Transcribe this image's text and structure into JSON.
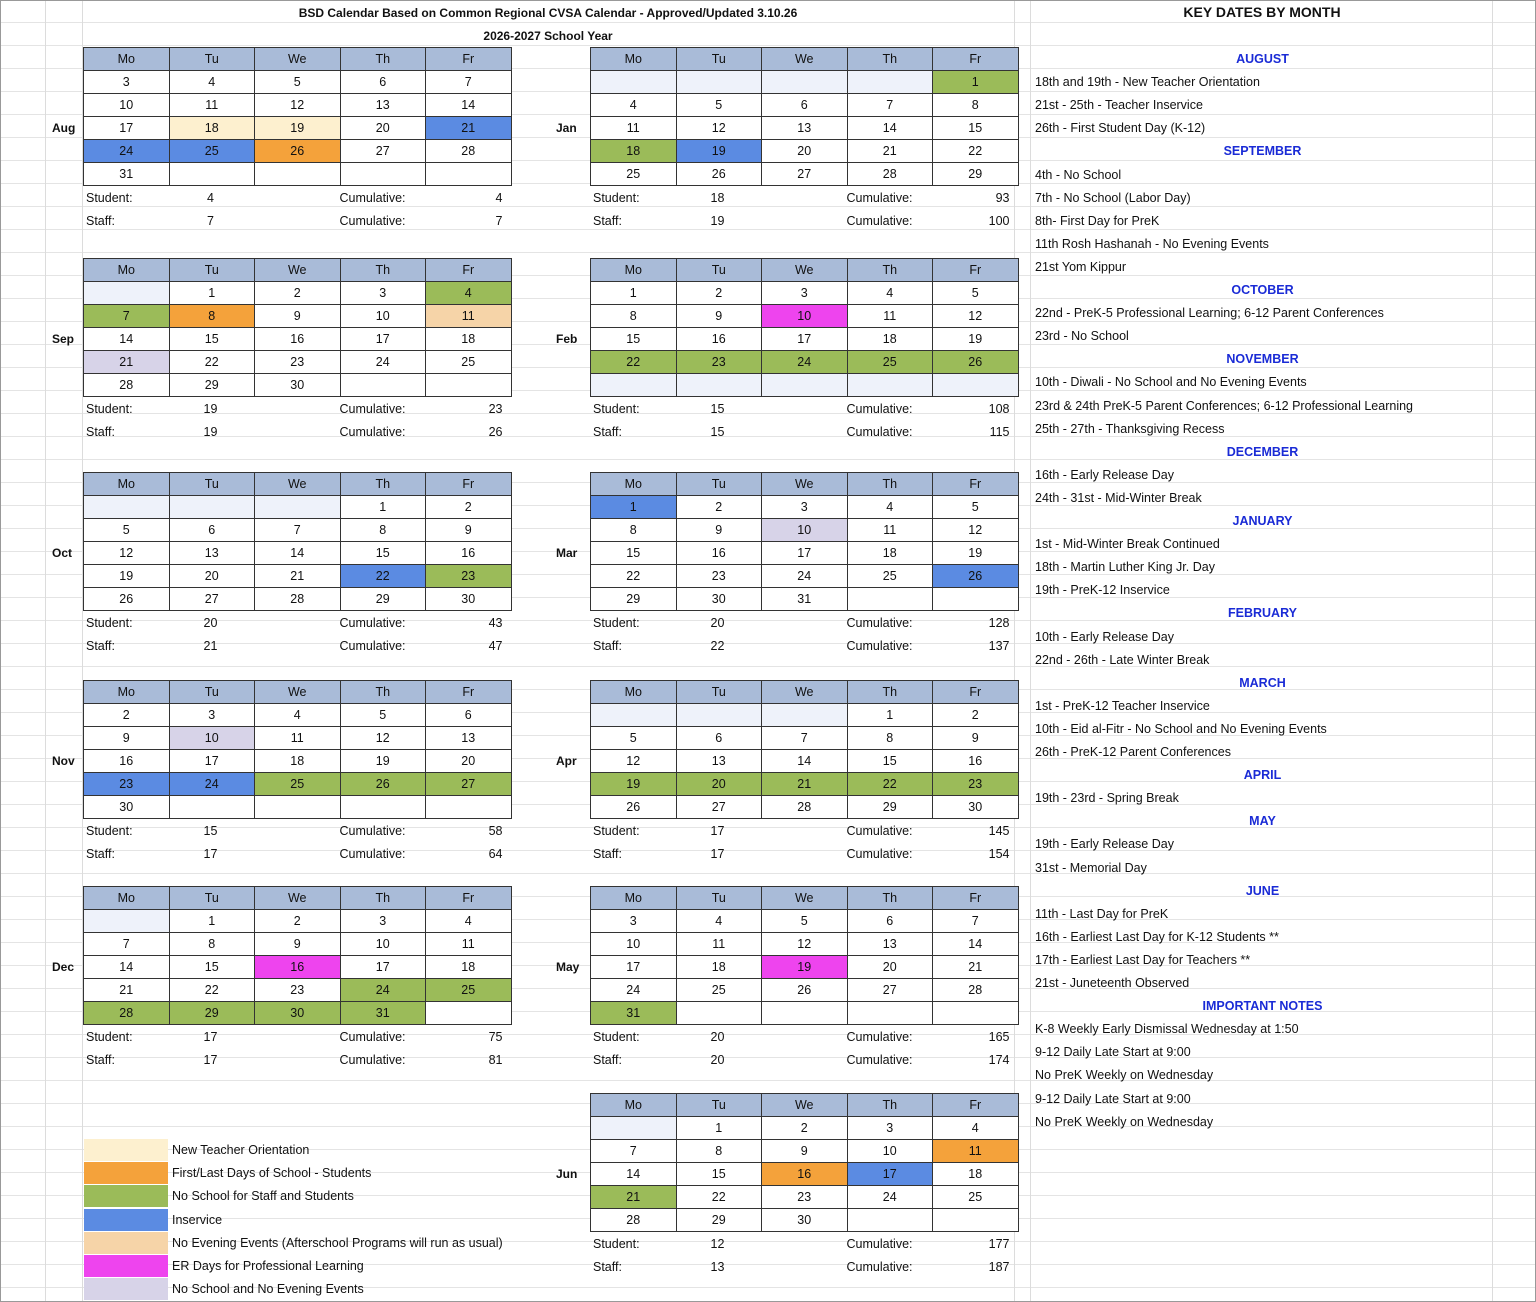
{
  "header": {
    "title": "BSD Calendar Based on Common Regional CVSA Calendar - Approved/Updated 3.10.26",
    "subtitle": "2026-2027 School Year",
    "key_dates_title": "KEY DATES BY MONTH"
  },
  "labels": {
    "student": "Student:",
    "staff": "Staff:",
    "cumulative": "Cumulative:"
  },
  "weekdays": [
    "Mo",
    "Tu",
    "We",
    "Th",
    "Fr"
  ],
  "colors": {
    "orient": "#fdf0cf",
    "first": "#f4a23b",
    "noschool": "#9bbb59",
    "inservice": "#5b8be2",
    "noeve": "#f6d4a8",
    "er": "#ee44ee",
    "nsne": "#d7d3e8",
    "blank": "#eef2fa"
  },
  "months": [
    {
      "name": "Aug",
      "weeks": [
        [
          "3",
          "4",
          "5",
          "6",
          "7"
        ],
        [
          "10",
          "11",
          "12",
          "13",
          "14"
        ],
        [
          "17",
          "18:orient",
          "19:orient",
          "20",
          "21:inservice"
        ],
        [
          "24:inservice",
          "25:inservice",
          "26:first",
          "27",
          "28"
        ],
        [
          "31",
          "",
          "",
          "",
          ""
        ]
      ],
      "student": "4",
      "student_cum": "4",
      "staff": "7",
      "staff_cum": "7"
    },
    {
      "name": "Jan",
      "weeks": [
        [
          ":blank",
          ":blank",
          ":blank",
          ":blank",
          "1:noschool"
        ],
        [
          "4",
          "5",
          "6",
          "7",
          "8"
        ],
        [
          "11",
          "12",
          "13",
          "14",
          "15"
        ],
        [
          "18:noschool",
          "19:inservice",
          "20",
          "21",
          "22"
        ],
        [
          "25",
          "26",
          "27",
          "28",
          "29"
        ]
      ],
      "student": "18",
      "student_cum": "93",
      "staff": "19",
      "staff_cum": "100"
    },
    {
      "name": "Sep",
      "weeks": [
        [
          ":blank",
          "1",
          "2",
          "3",
          "4:noschool"
        ],
        [
          "7:noschool",
          "8:first",
          "9",
          "10",
          "11:noeve"
        ],
        [
          "14",
          "15",
          "16",
          "17",
          "18"
        ],
        [
          "21:nsne",
          "22",
          "23",
          "24",
          "25"
        ],
        [
          "28",
          "29",
          "30",
          "",
          ""
        ]
      ],
      "student": "19",
      "student_cum": "23",
      "staff": "19",
      "staff_cum": "26"
    },
    {
      "name": "Feb",
      "weeks": [
        [
          "1",
          "2",
          "3",
          "4",
          "5"
        ],
        [
          "8",
          "9",
          "10:er",
          "11",
          "12"
        ],
        [
          "15",
          "16",
          "17",
          "18",
          "19"
        ],
        [
          "22:noschool",
          "23:noschool",
          "24:noschool",
          "25:noschool",
          "26:noschool"
        ],
        [
          ":blank",
          ":blank",
          ":blank",
          ":blank",
          ":blank"
        ]
      ],
      "student": "15",
      "student_cum": "108",
      "staff": "15",
      "staff_cum": "115"
    },
    {
      "name": "Oct",
      "weeks": [
        [
          ":blank",
          ":blank",
          ":blank",
          "1",
          "2"
        ],
        [
          "5",
          "6",
          "7",
          "8",
          "9"
        ],
        [
          "12",
          "13",
          "14",
          "15",
          "16"
        ],
        [
          "19",
          "20",
          "21",
          "22:inservice",
          "23:noschool"
        ],
        [
          "26",
          "27",
          "28",
          "29",
          "30"
        ]
      ],
      "student": "20",
      "student_cum": "43",
      "staff": "21",
      "staff_cum": "47"
    },
    {
      "name": "Mar",
      "weeks": [
        [
          "1:inservice",
          "2",
          "3",
          "4",
          "5"
        ],
        [
          "8",
          "9",
          "10:nsne",
          "11",
          "12"
        ],
        [
          "15",
          "16",
          "17",
          "18",
          "19"
        ],
        [
          "22",
          "23",
          "24",
          "25",
          "26:inservice"
        ],
        [
          "29",
          "30",
          "31",
          "",
          ""
        ]
      ],
      "student": "20",
      "student_cum": "128",
      "staff": "22",
      "staff_cum": "137"
    },
    {
      "name": "Nov",
      "weeks": [
        [
          "2",
          "3",
          "4",
          "5",
          "6"
        ],
        [
          "9",
          "10:nsne",
          "11",
          "12",
          "13"
        ],
        [
          "16",
          "17",
          "18",
          "19",
          "20"
        ],
        [
          "23:inservice",
          "24:inservice",
          "25:noschool",
          "26:noschool",
          "27:noschool"
        ],
        [
          "30",
          "",
          "",
          "",
          ""
        ]
      ],
      "student": "15",
      "student_cum": "58",
      "staff": "17",
      "staff_cum": "64"
    },
    {
      "name": "Apr",
      "weeks": [
        [
          ":blank",
          ":blank",
          ":blank",
          "1",
          "2"
        ],
        [
          "5",
          "6",
          "7",
          "8",
          "9"
        ],
        [
          "12",
          "13",
          "14",
          "15",
          "16"
        ],
        [
          "19:noschool",
          "20:noschool",
          "21:noschool",
          "22:noschool",
          "23:noschool"
        ],
        [
          "26",
          "27",
          "28",
          "29",
          "30"
        ]
      ],
      "student": "17",
      "student_cum": "145",
      "staff": "17",
      "staff_cum": "154"
    },
    {
      "name": "Dec",
      "weeks": [
        [
          ":blank",
          "1",
          "2",
          "3",
          "4"
        ],
        [
          "7",
          "8",
          "9",
          "10",
          "11"
        ],
        [
          "14",
          "15",
          "16:er",
          "17",
          "18"
        ],
        [
          "21",
          "22",
          "23",
          "24:noschool",
          "25:noschool"
        ],
        [
          "28:noschool",
          "29:noschool",
          "30:noschool",
          "31:noschool",
          ""
        ]
      ],
      "student": "17",
      "student_cum": "75",
      "staff": "17",
      "staff_cum": "81"
    },
    {
      "name": "May",
      "weeks": [
        [
          "3",
          "4",
          "5",
          "6",
          "7"
        ],
        [
          "10",
          "11",
          "12",
          "13",
          "14"
        ],
        [
          "17",
          "18",
          "19:er",
          "20",
          "21"
        ],
        [
          "24",
          "25",
          "26",
          "27",
          "28"
        ],
        [
          "31:noschool",
          "",
          "",
          "",
          ""
        ]
      ],
      "student": "20",
      "student_cum": "165",
      "staff": "20",
      "staff_cum": "174"
    },
    {
      "name": "Jun",
      "weeks": [
        [
          ":blank",
          "1",
          "2",
          "3",
          "4"
        ],
        [
          "7",
          "8",
          "9",
          "10",
          "11:first"
        ],
        [
          "14",
          "15",
          "16:first",
          "17:inservice",
          "18"
        ],
        [
          "21:noschool",
          "22",
          "23",
          "24",
          "25"
        ],
        [
          "28",
          "29",
          "30",
          "",
          ""
        ]
      ],
      "student": "12",
      "student_cum": "177",
      "staff": "13",
      "staff_cum": "187"
    }
  ],
  "legend": [
    {
      "key": "orient",
      "label": "New Teacher Orientation"
    },
    {
      "key": "first",
      "label": "First/Last Days of School - Students"
    },
    {
      "key": "noschool",
      "label": "No School for Staff and Students"
    },
    {
      "key": "inservice",
      "label": "Inservice"
    },
    {
      "key": "noeve",
      "label": "No Evening Events (Afterschool Programs will run as usual)"
    },
    {
      "key": "er",
      "label": "ER Days for Professional Learning"
    },
    {
      "key": "nsne",
      "label": "No School and No Evening Events"
    }
  ],
  "key_dates": [
    {
      "text": "AUGUST",
      "header": true
    },
    {
      "text": "18th and 19th - New Teacher Orientation"
    },
    {
      "text": "21st - 25th - Teacher Inservice"
    },
    {
      "text": "26th - First Student Day (K-12)"
    },
    {
      "text": "SEPTEMBER",
      "header": true
    },
    {
      "text": "4th - No School"
    },
    {
      "text": "7th - No School (Labor Day)"
    },
    {
      "text": "8th- First Day for PreK"
    },
    {
      "text": "11th Rosh Hashanah - No Evening Events"
    },
    {
      "text": "21st  Yom Kippur"
    },
    {
      "text": "OCTOBER",
      "header": true
    },
    {
      "text": "22nd - PreK-5 Professional Learning; 6-12 Parent Conferences"
    },
    {
      "text": "23rd - No School"
    },
    {
      "text": "NOVEMBER",
      "header": true
    },
    {
      "text": "10th - Diwali - No School and No Evening Events"
    },
    {
      "text": "23rd & 24th PreK-5 Parent Conferences; 6-12 Professional Learning"
    },
    {
      "text": "25th - 27th - Thanksgiving Recess"
    },
    {
      "text": "DECEMBER",
      "header": true
    },
    {
      "text": "16th - Early Release Day"
    },
    {
      "text": "24th - 31st -  Mid-Winter Break"
    },
    {
      "text": "JANUARY",
      "header": true
    },
    {
      "text": "1st  - Mid-Winter Break Continued"
    },
    {
      "text": "18th - Martin Luther King Jr. Day"
    },
    {
      "text": "19th - PreK-12 Inservice"
    },
    {
      "text": "FEBRUARY",
      "header": true
    },
    {
      "text": "10th - Early Release Day"
    },
    {
      "text": "22nd - 26th - Late Winter Break"
    },
    {
      "text": "MARCH",
      "header": true
    },
    {
      "text": "1st - PreK-12 Teacher Inservice"
    },
    {
      "text": "10th - Eid al-Fitr - No School and No Evening Events"
    },
    {
      "text": "26th - PreK-12 Parent Conferences"
    },
    {
      "text": "APRIL",
      "header": true
    },
    {
      "text": "19th - 23rd  - Spring Break"
    },
    {
      "text": "MAY",
      "header": true
    },
    {
      "text": "19th - Early Release Day"
    },
    {
      "text": "31st  - Memorial Day"
    },
    {
      "text": "JUNE",
      "header": true
    },
    {
      "text": "11th - Last Day for PreK"
    },
    {
      "text": "16th - Earliest Last Day for K-12 Students **"
    },
    {
      "text": "17th - Earliest Last Day for Teachers **"
    },
    {
      "text": "21st - Juneteenth Observed"
    },
    {
      "text": "IMPORTANT NOTES",
      "header": true
    },
    {
      "text": "K-8 Weekly Early Dismissal Wednesday at 1:50"
    },
    {
      "text": "9-12 Daily Late Start at 9:00"
    },
    {
      "text": "No PreK Weekly on Wednesday"
    },
    {
      "text": "9-12 Daily Late Start at 9:00"
    },
    {
      "text": "No PreK Weekly on Wednesday"
    }
  ]
}
